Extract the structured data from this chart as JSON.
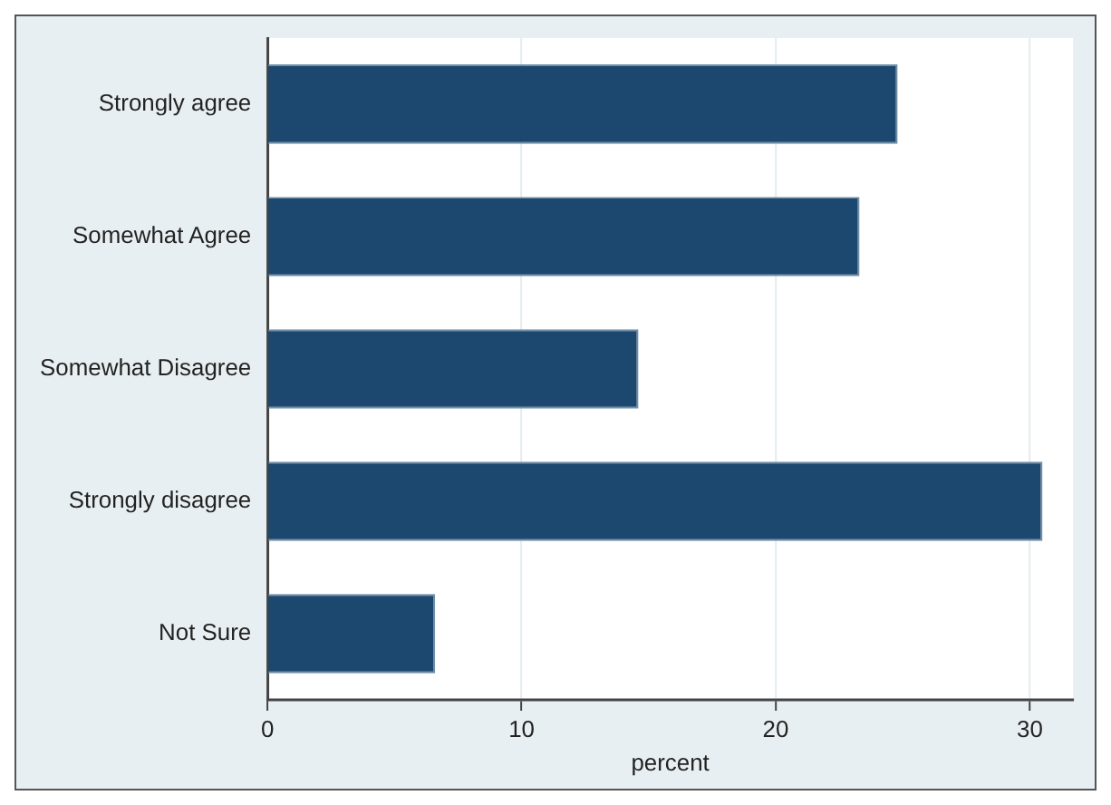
{
  "chart_data": {
    "type": "bar",
    "orientation": "horizontal",
    "categories": [
      "Strongly agree",
      "Somewhat Agree",
      "Somewhat Disagree",
      "Strongly disagree",
      "Not Sure"
    ],
    "values": [
      24.8,
      23.3,
      14.6,
      30.5,
      6.6
    ],
    "color": "#1c476e",
    "xlabel": "percent",
    "xlim": [
      0,
      31.7
    ],
    "xticks": [
      0,
      10,
      20,
      30
    ],
    "grid": "x",
    "legend": false
  }
}
